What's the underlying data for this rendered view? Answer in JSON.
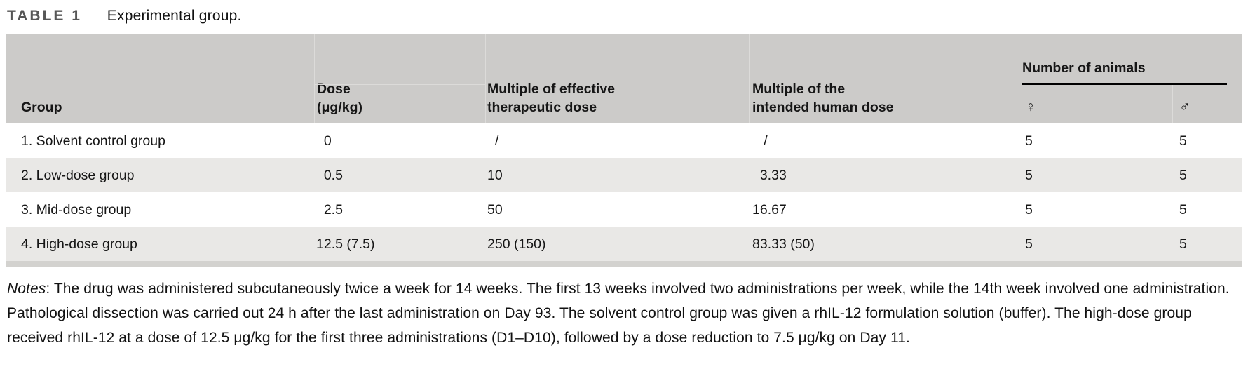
{
  "title": {
    "label": "TABLE 1",
    "caption": "Experimental group."
  },
  "table": {
    "columns": {
      "group": "Group",
      "dose": "Dose\n(μg/kg)",
      "mult_effective": "Multiple of effective\ntherapeutic dose",
      "mult_human": "Multiple of the\nintended human dose",
      "animals_group": "Number of animals",
      "female_symbol": "♀",
      "male_symbol": "♂"
    },
    "rows": [
      {
        "group": "1. Solvent control group",
        "dose": "  0",
        "mult_effective": "  /",
        "mult_human": "   /",
        "female": "5",
        "male": "5"
      },
      {
        "group": "2. Low-dose group",
        "dose": "  0.5",
        "mult_effective": "10",
        "mult_human": "  3.33",
        "female": "5",
        "male": "5"
      },
      {
        "group": "3. Mid-dose group",
        "dose": "  2.5",
        "mult_effective": "50",
        "mult_human": "16.67",
        "female": "5",
        "male": "5"
      },
      {
        "group": "4. High-dose group",
        "dose": "12.5 (7.5)",
        "mult_effective": "250 (150)",
        "mult_human": "83.33 (50)",
        "female": "5",
        "male": "5"
      }
    ]
  },
  "notes": {
    "label": "Notes",
    "text": ": The drug was administered subcutaneously twice a week for 14 weeks. The first 13 weeks involved two administrations per week, while the 14th week involved one administration. Pathological dissection was carried out 24 h after the last administration on Day 93. The solvent control group was given a rhIL-12 formulation solution (buffer). The high-dose group received rhIL-12 at a dose of 12.5 μg/kg for the first three administrations (D1–D10), followed by a dose reduction to 7.5 μg/kg on Day 11."
  }
}
